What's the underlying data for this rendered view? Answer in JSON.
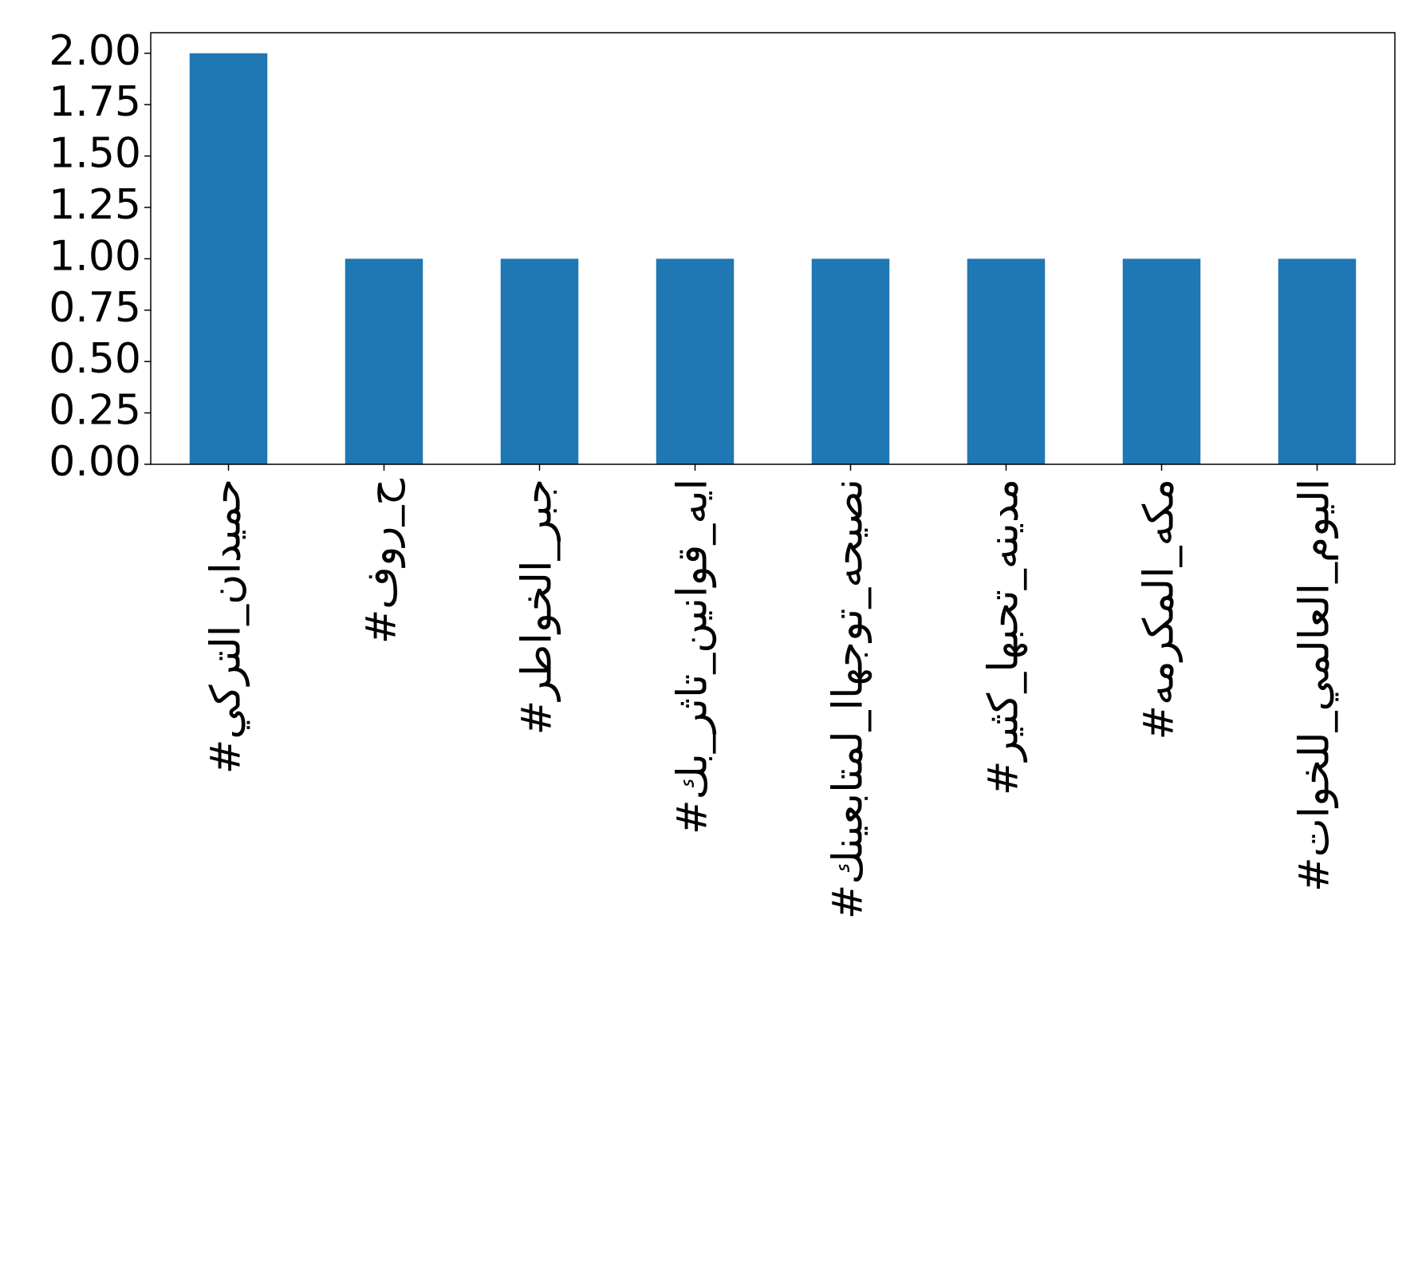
{
  "chart_data": {
    "type": "bar",
    "categories": [
      "#حميدان_التركي",
      "#ح_روف",
      "#جبر_الخواطر",
      "#ايه_قوانين_تاثر_بك",
      "#نصيحه_توجهاا_لمتابعينك",
      "#مدينه_تحبها_كثير",
      "#مكه_المكرمه",
      "#اليوم_العالمي_للخوات"
    ],
    "values": [
      2,
      1,
      1,
      1,
      1,
      1,
      1,
      1
    ],
    "color": "#1f77b4",
    "ylim": [
      0,
      2.1
    ],
    "yticks": [
      {
        "value": 0,
        "label": "0.00"
      },
      {
        "value": 0.25,
        "label": "0.25"
      },
      {
        "value": 0.5,
        "label": "0.50"
      },
      {
        "value": 0.75,
        "label": "0.75"
      },
      {
        "value": 1,
        "label": "1.00"
      },
      {
        "value": 1.25,
        "label": "1.25"
      },
      {
        "value": 1.5,
        "label": "1.50"
      },
      {
        "value": 1.75,
        "label": "1.75"
      },
      {
        "value": 2,
        "label": "2.00"
      }
    ],
    "grid": false
  }
}
